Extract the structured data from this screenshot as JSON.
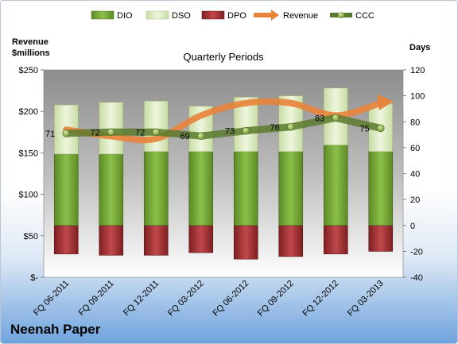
{
  "chart_data": {
    "type": "bar",
    "title": "Quarterly Periods",
    "company": "Neenah Paper",
    "left_axis_title": [
      "Revenue",
      "$millions"
    ],
    "right_axis_title": "Days",
    "categories": [
      "FQ 06-2011",
      "FQ 09-2011",
      "FQ 12-2011",
      "FQ 03-2012",
      "FQ 06-2012",
      "FQ 09-2012",
      "FQ 12-2012",
      "FQ 03-2013"
    ],
    "left_ylim": [
      0,
      250
    ],
    "left_ticks": [
      0,
      50,
      100,
      150,
      200,
      250
    ],
    "left_tick_labels": [
      "$-",
      "$50",
      "$100",
      "$150",
      "$200",
      "$250"
    ],
    "right_ylim": [
      -40,
      120
    ],
    "right_ticks": [
      -40,
      -20,
      0,
      20,
      40,
      60,
      80,
      100,
      120
    ],
    "series": [
      {
        "name": "DIO",
        "axis": "days",
        "color": "#77a83a",
        "values": [
          55,
          55,
          57,
          57,
          57,
          57,
          62,
          57
        ]
      },
      {
        "name": "DSO",
        "axis": "days",
        "color": "#d7e8b5",
        "values": [
          38,
          40,
          39,
          35,
          42,
          43,
          44,
          37
        ]
      },
      {
        "name": "DPO",
        "axis": "days",
        "color": "#a02d30",
        "values": [
          -22,
          -23,
          -23,
          -21,
          -26,
          -24,
          -22,
          -20
        ]
      },
      {
        "name": "Revenue",
        "axis": "revenue",
        "color": "#e8833a",
        "values": [
          178,
          170,
          167,
          195,
          210,
          210,
          195,
          210
        ]
      },
      {
        "name": "CCC",
        "axis": "days",
        "color": "#5a7a2e",
        "values": [
          71,
          72,
          72,
          69,
          73,
          76,
          83,
          75
        ]
      }
    ],
    "ccc_labels": [
      "71",
      "72",
      "72",
      "69",
      "73",
      "76",
      "83",
      "75"
    ],
    "legend_position": "top",
    "grid": false
  }
}
